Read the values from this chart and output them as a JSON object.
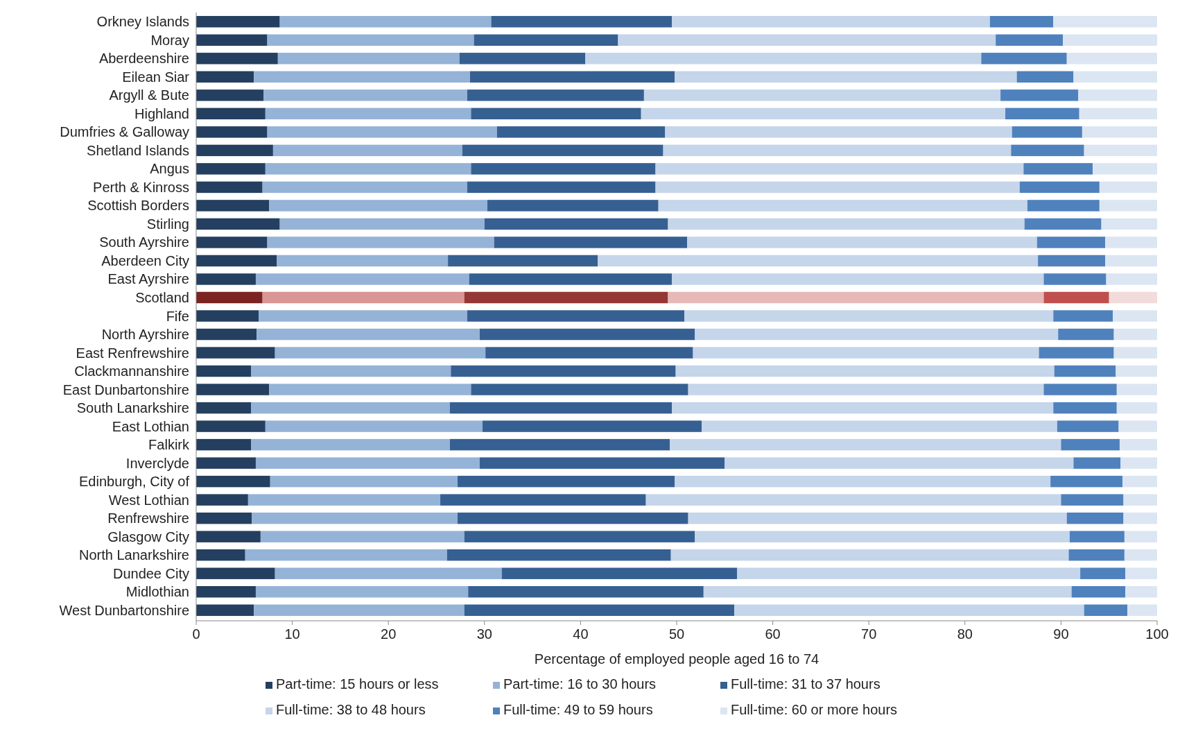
{
  "chart_data": {
    "type": "bar",
    "orientation": "horizontal",
    "stacked": true,
    "xlabel": "Percentage of employed people aged 16 to 74",
    "categories": [
      "Orkney Islands",
      "Moray",
      "Aberdeenshire",
      "Eilean Siar",
      "Argyll & Bute",
      "Highland",
      "Dumfries & Galloway",
      "Shetland Islands",
      "Angus",
      "Perth & Kinross",
      "Scottish Borders",
      "Stirling",
      "South Ayrshire",
      "Aberdeen City",
      "East Ayrshire",
      "Scotland",
      "Fife",
      "North Ayrshire",
      "East Renfrewshire",
      "Clackmannanshire",
      "East Dunbartonshire",
      "South Lanarkshire",
      "East Lothian",
      "Falkirk",
      "Inverclyde",
      "Edinburgh, City of",
      "West Lothian",
      "Renfrewshire",
      "Glasgow City",
      "North Lanarkshire",
      "Dundee City",
      "Midlothian",
      "West Dunbartonshire"
    ],
    "series": [
      {
        "name": "Part-time: 15 hours or less",
        "color": "#243f60",
        "colors": [
          "#243f60",
          "#243f60",
          "#243f60",
          "#243f60",
          "#243f60",
          "#243f60",
          "#243f60",
          "#243f60",
          "#243f60",
          "#243f60",
          "#243f60",
          "#243f60",
          "#243f60",
          "#243f60",
          "#243f60",
          "#7b2422",
          "#243f60",
          "#243f60",
          "#243f60",
          "#243f60",
          "#243f60",
          "#243f60",
          "#243f60",
          "#243f60",
          "#243f60",
          "#243f60",
          "#243f60",
          "#243f60",
          "#243f60",
          "#243f60",
          "#243f60",
          "#243f60",
          "#243f60"
        ],
        "values": [
          8.7,
          7.4,
          8.5,
          6.0,
          7.0,
          7.2,
          7.4,
          8.0,
          7.2,
          6.9,
          7.6,
          8.7,
          7.4,
          8.4,
          6.2,
          6.9,
          6.5,
          6.3,
          8.2,
          5.7,
          7.6,
          5.7,
          7.2,
          5.7,
          6.2,
          7.7,
          5.4,
          5.8,
          6.7,
          5.1,
          8.2,
          6.2,
          6.0
        ]
      },
      {
        "name": "Part-time: 16 to 30 hours",
        "color": "#95b3d7",
        "colors": [
          "#95b3d7",
          "#95b3d7",
          "#95b3d7",
          "#95b3d7",
          "#95b3d7",
          "#95b3d7",
          "#95b3d7",
          "#95b3d7",
          "#95b3d7",
          "#95b3d7",
          "#95b3d7",
          "#95b3d7",
          "#95b3d7",
          "#95b3d7",
          "#95b3d7",
          "#da9694",
          "#95b3d7",
          "#95b3d7",
          "#95b3d7",
          "#95b3d7",
          "#95b3d7",
          "#95b3d7",
          "#95b3d7",
          "#95b3d7",
          "#95b3d7",
          "#95b3d7",
          "#95b3d7",
          "#95b3d7",
          "#95b3d7",
          "#95b3d7",
          "#95b3d7",
          "#95b3d7",
          "#95b3d7"
        ],
        "values": [
          22.0,
          21.5,
          18.9,
          22.5,
          21.2,
          21.4,
          23.9,
          19.7,
          21.4,
          21.3,
          22.7,
          21.3,
          23.6,
          17.8,
          22.2,
          21.0,
          21.7,
          23.2,
          21.9,
          20.8,
          21.0,
          20.7,
          22.6,
          20.7,
          23.3,
          19.5,
          20.0,
          21.4,
          21.2,
          21.0,
          23.6,
          22.1,
          21.9
        ]
      },
      {
        "name": "Full-time: 31 to 37 hours",
        "color": "#366092",
        "colors": [
          "#366092",
          "#366092",
          "#366092",
          "#366092",
          "#366092",
          "#366092",
          "#366092",
          "#366092",
          "#366092",
          "#366092",
          "#366092",
          "#366092",
          "#366092",
          "#366092",
          "#366092",
          "#953735",
          "#366092",
          "#366092",
          "#366092",
          "#366092",
          "#366092",
          "#366092",
          "#366092",
          "#366092",
          "#366092",
          "#366092",
          "#366092",
          "#366092",
          "#366092",
          "#366092",
          "#366092",
          "#366092",
          "#366092"
        ],
        "values": [
          18.8,
          15.0,
          13.1,
          21.3,
          18.4,
          17.7,
          17.5,
          20.9,
          19.2,
          19.6,
          17.8,
          19.1,
          20.1,
          15.6,
          21.1,
          21.2,
          22.6,
          22.4,
          21.6,
          23.4,
          22.6,
          23.1,
          22.8,
          22.9,
          25.5,
          22.6,
          21.4,
          24.0,
          24.0,
          23.3,
          24.5,
          24.5,
          28.1
        ]
      },
      {
        "name": "Full-time: 38 to 48 hours",
        "color": "#c5d5ea",
        "colors": [
          "#c5d5ea",
          "#c5d5ea",
          "#c5d5ea",
          "#c5d5ea",
          "#c5d5ea",
          "#c5d5ea",
          "#c5d5ea",
          "#c5d5ea",
          "#c5d5ea",
          "#c5d5ea",
          "#c5d5ea",
          "#c5d5ea",
          "#c5d5ea",
          "#c5d5ea",
          "#c5d5ea",
          "#e6b9b8",
          "#c5d5ea",
          "#c5d5ea",
          "#c5d5ea",
          "#c5d5ea",
          "#c5d5ea",
          "#c5d5ea",
          "#c5d5ea",
          "#c5d5ea",
          "#c5d5ea",
          "#c5d5ea",
          "#c5d5ea",
          "#c5d5ea",
          "#c5d5ea",
          "#c5d5ea",
          "#c5d5ea",
          "#c5d5ea",
          "#c5d5ea"
        ],
        "values": [
          33.1,
          39.3,
          41.2,
          35.6,
          37.1,
          37.9,
          36.1,
          36.2,
          38.3,
          37.9,
          38.4,
          37.1,
          36.4,
          45.8,
          38.7,
          39.1,
          38.4,
          37.8,
          36.0,
          39.4,
          37.0,
          39.7,
          37.0,
          40.7,
          36.3,
          39.1,
          43.2,
          39.4,
          39.0,
          41.4,
          35.7,
          38.3,
          36.4
        ]
      },
      {
        "name": "Full-time: 49 to 59 hours",
        "color": "#4f81bd",
        "colors": [
          "#4f81bd",
          "#4f81bd",
          "#4f81bd",
          "#4f81bd",
          "#4f81bd",
          "#4f81bd",
          "#4f81bd",
          "#4f81bd",
          "#4f81bd",
          "#4f81bd",
          "#4f81bd",
          "#4f81bd",
          "#4f81bd",
          "#4f81bd",
          "#4f81bd",
          "#c0504d",
          "#4f81bd",
          "#4f81bd",
          "#4f81bd",
          "#4f81bd",
          "#4f81bd",
          "#4f81bd",
          "#4f81bd",
          "#4f81bd",
          "#4f81bd",
          "#4f81bd",
          "#4f81bd",
          "#4f81bd",
          "#4f81bd",
          "#4f81bd",
          "#4f81bd",
          "#4f81bd",
          "#4f81bd"
        ],
        "values": [
          6.6,
          7.0,
          8.9,
          5.9,
          8.1,
          7.7,
          7.3,
          7.6,
          7.2,
          8.3,
          7.5,
          8.0,
          7.1,
          7.0,
          6.5,
          6.8,
          6.2,
          5.8,
          7.8,
          6.4,
          7.6,
          6.6,
          6.4,
          6.1,
          4.9,
          7.5,
          6.5,
          5.9,
          5.7,
          5.8,
          4.7,
          5.6,
          4.5
        ]
      },
      {
        "name": "Full-time: 60 or more hours",
        "color": "#dce6f2",
        "colors": [
          "#dce6f2",
          "#dce6f2",
          "#dce6f2",
          "#dce6f2",
          "#dce6f2",
          "#dce6f2",
          "#dce6f2",
          "#dce6f2",
          "#dce6f2",
          "#dce6f2",
          "#dce6f2",
          "#dce6f2",
          "#dce6f2",
          "#dce6f2",
          "#dce6f2",
          "#f2dcdb",
          "#dce6f2",
          "#dce6f2",
          "#dce6f2",
          "#dce6f2",
          "#dce6f2",
          "#dce6f2",
          "#dce6f2",
          "#dce6f2",
          "#dce6f2",
          "#dce6f2",
          "#dce6f2",
          "#dce6f2",
          "#dce6f2",
          "#dce6f2",
          "#dce6f2",
          "#dce6f2",
          "#dce6f2"
        ],
        "values": [
          10.8,
          9.8,
          9.4,
          8.7,
          8.2,
          8.1,
          7.8,
          7.6,
          6.7,
          6.0,
          6.0,
          5.8,
          5.4,
          5.4,
          5.3,
          5.0,
          4.6,
          4.5,
          4.5,
          4.3,
          4.2,
          4.2,
          4.0,
          3.9,
          3.8,
          3.6,
          3.5,
          3.5,
          3.4,
          3.4,
          3.3,
          3.3,
          3.1
        ]
      }
    ],
    "xlim": [
      0,
      100
    ],
    "xticks": [
      0,
      10,
      20,
      30,
      40,
      50,
      60,
      70,
      80,
      90,
      100
    ],
    "legend": "bottom"
  }
}
